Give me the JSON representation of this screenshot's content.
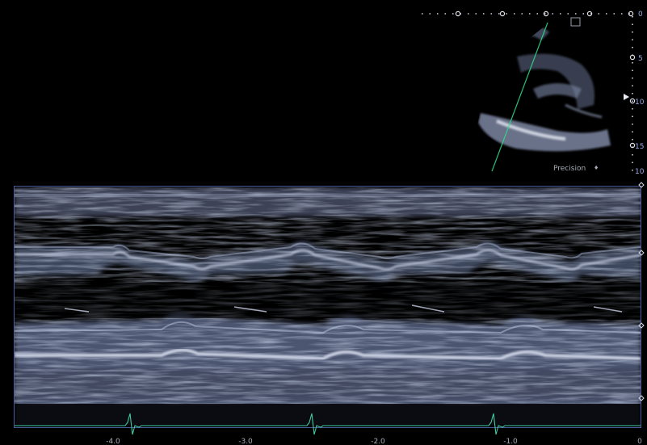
{
  "mmode": {
    "time_ticks": [
      "-4.0",
      "-3.0",
      "-2.0",
      "-1.0",
      "0"
    ],
    "ecg_beats": 3
  },
  "twod": {
    "depth_ticks": [
      "0",
      "5",
      "10",
      "15"
    ],
    "extra_depth_tick": "10",
    "label": "Precision",
    "label_symbol": "♦"
  },
  "colors": {
    "background": "#000000",
    "frame": "#4a5a9a",
    "ecg": "#3fc9a4",
    "cursor_line": "#2fe08a",
    "marker": "#d7dbe6"
  }
}
